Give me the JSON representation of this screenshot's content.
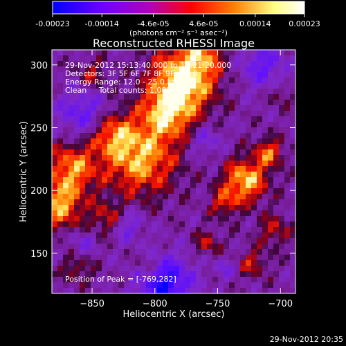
{
  "chart_data": {
    "type": "heatmap",
    "title": "Reconstructed RHESSI Image",
    "xlabel": "Heliocentric X (arcsec)",
    "ylabel": "Heliocentric Y (arcsec)",
    "xlim": [
      -882,
      -688
    ],
    "ylim": [
      118,
      312
    ],
    "x_ticks": [
      -850,
      -800,
      -750,
      -700
    ],
    "y_ticks": [
      150,
      200,
      250,
      300
    ],
    "colorbar": {
      "label": "(photons cm⁻² s⁻¹ asec⁻²)",
      "ticks": [
        -0.00023,
        -0.00014,
        -4.6e-05,
        4.6e-05,
        0.00014,
        0.00023
      ],
      "tick_labels": [
        "-0.00023",
        "-0.00014",
        "-4.6e-05",
        "4.6e-05",
        "0.00014",
        "0.00023"
      ],
      "range": [
        -0.00023,
        0.00023
      ],
      "colors": [
        "#0000ff",
        "#7000ff",
        "#b000c0",
        "#ff0000",
        "#ff8000",
        "#ffff80",
        "#ffffff"
      ]
    },
    "annotations": [
      "29-Nov-2012 15:13:40.000 to 15:21:20.000",
      "Detectors: 3F 5F 6F 7F 8F 9F, Att 0",
      "Energy Range: 12.0 - 25.0 keV",
      "Clean     Total counts: 1.08E+04"
    ],
    "peak_label": "Position of Peak = [-769,282]",
    "peak_position": [
      -769,
      282
    ],
    "grid": false,
    "legend": "none"
  },
  "footer": {
    "timestamp": "29-Nov-2012 20:35"
  }
}
